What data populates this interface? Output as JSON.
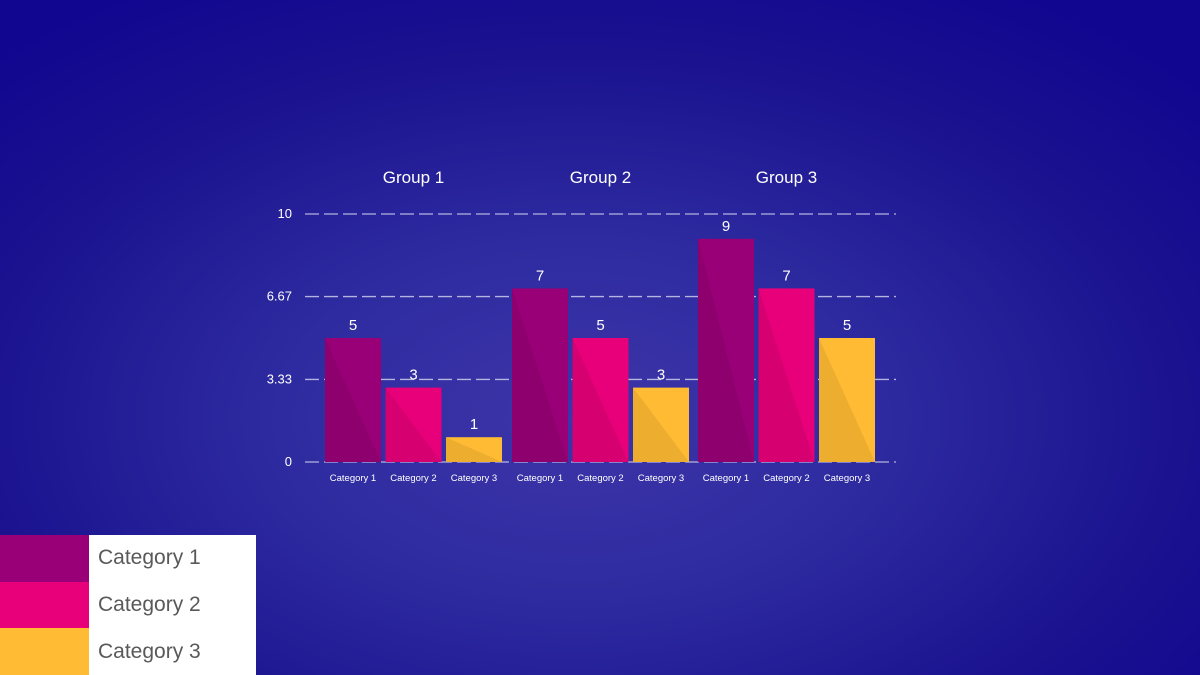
{
  "chart_data": {
    "type": "bar",
    "groups": [
      "Group 1",
      "Group 2",
      "Group 3"
    ],
    "categories": [
      "Category 1",
      "Category 2",
      "Category 3"
    ],
    "series": [
      {
        "name": "Category 1",
        "color": "#990077",
        "values": [
          5,
          7,
          9
        ]
      },
      {
        "name": "Category 2",
        "color": "#e8007a",
        "values": [
          3,
          5,
          7
        ]
      },
      {
        "name": "Category 3",
        "color": "#ffbb33",
        "values": [
          1,
          3,
          5
        ]
      }
    ],
    "ylim": [
      0,
      10
    ],
    "yticks": [
      "0",
      "3.33",
      "6.67",
      "10"
    ],
    "grid": true,
    "legend_position": "bottom-left"
  },
  "legend": {
    "items": [
      {
        "label": "Category 1",
        "color": "#990077"
      },
      {
        "label": "Category 2",
        "color": "#e8007a"
      },
      {
        "label": "Category 3",
        "color": "#ffbb33"
      }
    ]
  }
}
